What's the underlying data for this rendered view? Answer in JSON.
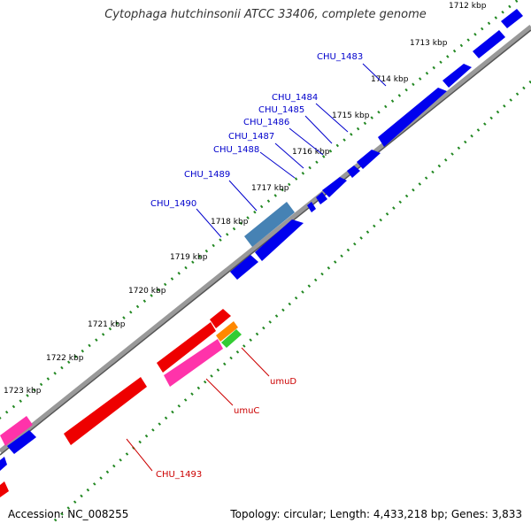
{
  "title": "Cytophaga hutchinsonii ATCC 33406, complete genome",
  "accession": "Accession: NC_008255",
  "topology": "Topology: circular; Length: 4,433,218 bp; Genes: 3,833",
  "colors": {
    "backbone": "#888888",
    "forward_gene": "#0000ee",
    "selected_gene": "#4682b4",
    "reverse_gene": "#ee0000",
    "magenta_gene": "#ff33aa",
    "orange_gene": "#ff8800",
    "green_gene": "#33cc33",
    "tick_dots": "#228822",
    "forward_label": "#0000cc",
    "reverse_label": "#cc0000"
  },
  "kbp_labels": [
    "1712 kbp",
    "1713 kbp",
    "1714 kbp",
    "1715 kbp",
    "1716 kbp",
    "1717 kbp",
    "1718 kbp",
    "1719 kbp",
    "1720 kbp",
    "1721 kbp",
    "1722 kbp",
    "1723 kbp"
  ],
  "forward_gene_labels": [
    "CHU_1483",
    "CHU_1484",
    "CHU_1485",
    "CHU_1486",
    "CHU_1487",
    "CHU_1488",
    "CHU_1489",
    "CHU_1490"
  ],
  "reverse_gene_labels": [
    "umuD",
    "umuC",
    "CHU_1493"
  ]
}
